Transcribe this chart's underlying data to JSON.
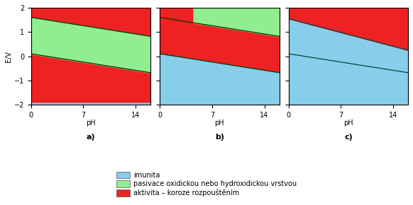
{
  "xlim": [
    0,
    16
  ],
  "ylim": [
    -2,
    2
  ],
  "xticks": [
    0,
    7,
    14
  ],
  "yticks": [
    -2,
    -1,
    0,
    1,
    2
  ],
  "xlabel": "pH",
  "ylabel": "E/V",
  "color_imunita": "#87CEEB",
  "color_pasivace": "#90EE90",
  "color_aktivita": "#EE2222",
  "line_color": "#003300",
  "subplot_labels": [
    "a)",
    "b)",
    "c)"
  ],
  "legend_labels": [
    "imunita",
    "pasivace oxidickou nebo hydroxidickou vrstvou",
    "aktivita – koroze rozpouštěním"
  ],
  "fig_width": 5.82,
  "fig_height": 2.9,
  "panel_a": {
    "line1": [
      1.6,
      0.82
    ],
    "line2": [
      0.1,
      -0.68
    ]
  },
  "panel_b": {
    "line1": [
      1.6,
      0.82
    ],
    "line2": [
      0.1,
      -0.68
    ],
    "green_thresh_pH": 4.5
  },
  "panel_c": {
    "line1": [
      1.55,
      0.25
    ],
    "line2": [
      0.1,
      -0.68
    ]
  }
}
